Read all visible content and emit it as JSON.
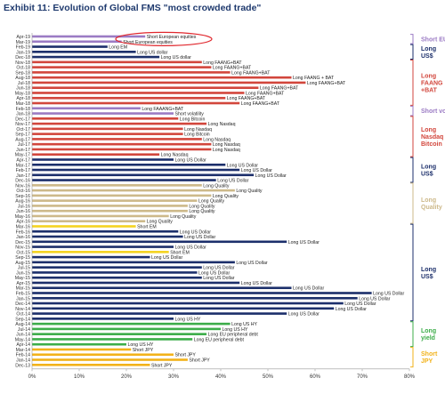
{
  "title": "Exhibit 11: Evolution of Global FMS \"most crowded trade\"",
  "colors": {
    "purple": "#9b7bc4",
    "red": "#d2463c",
    "orange": "#ee7a25",
    "navy": "#1c2f6b",
    "tan": "#cdb98a",
    "yellow": "#f4d320",
    "green": "#3cad49",
    "gold": "#f2b21a",
    "axis": "#999999",
    "highlight": "#e0272d"
  },
  "chart_data": {
    "type": "bar",
    "orientation": "horizontal",
    "title": "Exhibit 11: Evolution of Global FMS \"most crowded trade\"",
    "xlim": [
      0,
      80
    ],
    "x_ticks": [
      "0%",
      "10%",
      "20%",
      "30%",
      "40%",
      "50%",
      "60%",
      "70%",
      "80%"
    ],
    "grid": false,
    "categories": [
      "Apr-19",
      "Mar-19",
      "Feb-19",
      "Jan-19",
      "Dec-18",
      "Nov-18",
      "Oct-18",
      "Sep-18",
      "Aug-18",
      "Jul-18",
      "Jun-18",
      "May-18",
      "Apr-18",
      "Mar-18",
      "Feb-18",
      "Jan-18",
      "Dec-17",
      "Nov-17",
      "Oct-17",
      "Sep-17",
      "Aug-17",
      "Jul-17",
      "Jun-17",
      "May-17",
      "Apr-17",
      "Mar-17",
      "Feb-17",
      "Jan-17",
      "Dec-16",
      "Nov-16",
      "Oct-16",
      "Sep-16",
      "Aug-16",
      "Jul-16",
      "Jun-16",
      "May-16",
      "Apr-16",
      "Mar-16",
      "Feb-16",
      "Jan-16",
      "Dec-15",
      "Nov-15",
      "Oct-15",
      "Sep-15",
      "Aug-15",
      "Jul-15",
      "Jun-15",
      "May-15",
      "Apr-15",
      "Mar-15",
      "Feb-15",
      "Jan-15",
      "Dec-14",
      "Nov-14",
      "Oct-14",
      "Sep-14",
      "Aug-14",
      "Jul-14",
      "Jun-14",
      "May-14",
      "Apr-14",
      "Mar-14",
      "Feb-14",
      "Jan-14",
      "Dec-13"
    ],
    "values": [
      24,
      19,
      16,
      22,
      27,
      36,
      38,
      42,
      55,
      58,
      48,
      45,
      41,
      44,
      23,
      30,
      31,
      37,
      32,
      32,
      36,
      38,
      38,
      27,
      30,
      41,
      44,
      47,
      39,
      36,
      43,
      38,
      35,
      33,
      33,
      29,
      24,
      22,
      31,
      32,
      54,
      30,
      29,
      25,
      43,
      36,
      35,
      36,
      44,
      55,
      72,
      69,
      66,
      64,
      54,
      30,
      42,
      40,
      37,
      34,
      20,
      21,
      30,
      33,
      25
    ],
    "labels": [
      "Short European equities",
      "Short European equities",
      "Long EM",
      "Long US dollar",
      "Long US dollar",
      "Long FAANG+BAT",
      "Long FAANG+BAT",
      "Long FAANG+BAT",
      "Long FAANG + BAT",
      "Long FAANG+BAT",
      "Long FAANG+BAT",
      "Long FAANG+BAT",
      "Long FAANG+BAT",
      "Long FAANG+BAT",
      "Long FAAANG+BAT",
      "Short volatility",
      "Long Bitcoin",
      "Long Nasdaq",
      "Long Nasdaq",
      "Long Bitcoin",
      "Long Nasdaq",
      "Long Nasdaq",
      "Long Nasdaq",
      "Long Nasdaq",
      "Long US Dollar",
      "Long US Dollar",
      "Long US Dollar",
      "Long US Dollar",
      "Long US Dollar",
      "Long Quality",
      "Long Quality",
      "Long Quality",
      "Long Quality",
      "Long Quality",
      "Long Quality",
      "Long Quality",
      "Long Quality",
      "Short EM",
      "Long US Dollar",
      "Long US Dollar",
      "Long US Dollar",
      "Long US Dollar",
      "Short EM",
      "Long US Dollar",
      "Long US Dollar",
      "Long US Dollar",
      "Long US Dollar",
      "Long US Dollar",
      "Long US Dollar",
      "Long US Dollar",
      "Long US Dollar",
      "Long US Dollar",
      "Long US Dollar",
      "Long US Dollar",
      "Long US Dollar",
      "Long US HY",
      "Long US HY",
      "Long US HY",
      "Long EU peripheral debt",
      "Long EU peripheral debt",
      "Long US HY",
      "Short JPY",
      "Short JPY",
      "Short JPY",
      "Short JPY"
    ],
    "bar_colors": [
      "purple",
      "purple",
      "navy",
      "navy",
      "navy",
      "red",
      "red",
      "red",
      "red",
      "red",
      "red",
      "red",
      "red",
      "red",
      "purple",
      "purple",
      "red",
      "red",
      "red",
      "red",
      "red",
      "red",
      "red",
      "red",
      "navy",
      "navy",
      "navy",
      "navy",
      "navy",
      "tan",
      "tan",
      "tan",
      "tan",
      "tan",
      "tan",
      "tan",
      "tan",
      "yellow",
      "navy",
      "navy",
      "navy",
      "navy",
      "yellow",
      "navy",
      "navy",
      "navy",
      "navy",
      "navy",
      "navy",
      "navy",
      "navy",
      "navy",
      "navy",
      "navy",
      "navy",
      "navy",
      "green",
      "green",
      "green",
      "green",
      "green",
      "gold",
      "gold",
      "gold",
      "gold"
    ],
    "groups": [
      {
        "label_lines": [
          "Short EU"
        ],
        "start": 0,
        "end": 1,
        "color": "purple"
      },
      {
        "label_lines": [
          "Long",
          "US$"
        ],
        "start": 2,
        "end": 4,
        "color": "navy"
      },
      {
        "label_lines": [
          "Long",
          "FAANG",
          "+BAT"
        ],
        "start": 5,
        "end": 13,
        "color": "red"
      },
      {
        "label_lines": [
          "Short vol"
        ],
        "start": 14,
        "end": 15,
        "color": "purple"
      },
      {
        "label_lines": [
          "Long",
          "Nasdaq",
          "Bitcoin"
        ],
        "start": 16,
        "end": 23,
        "color": "red"
      },
      {
        "label_lines": [
          "Long",
          "US$"
        ],
        "start": 24,
        "end": 28,
        "color": "navy"
      },
      {
        "label_lines": [
          "Long",
          "Quality"
        ],
        "start": 29,
        "end": 36,
        "color": "tan"
      },
      {
        "label_lines": [
          "Long",
          "US$"
        ],
        "start": 37,
        "end": 55,
        "color": "navy"
      },
      {
        "label_lines": [
          "Long",
          "yield"
        ],
        "start": 56,
        "end": 60,
        "color": "green"
      },
      {
        "label_lines": [
          "Short",
          "JPY"
        ],
        "start": 61,
        "end": 64,
        "color": "gold"
      }
    ],
    "highlight": {
      "start": 0,
      "end": 1,
      "color": "highlight"
    }
  }
}
